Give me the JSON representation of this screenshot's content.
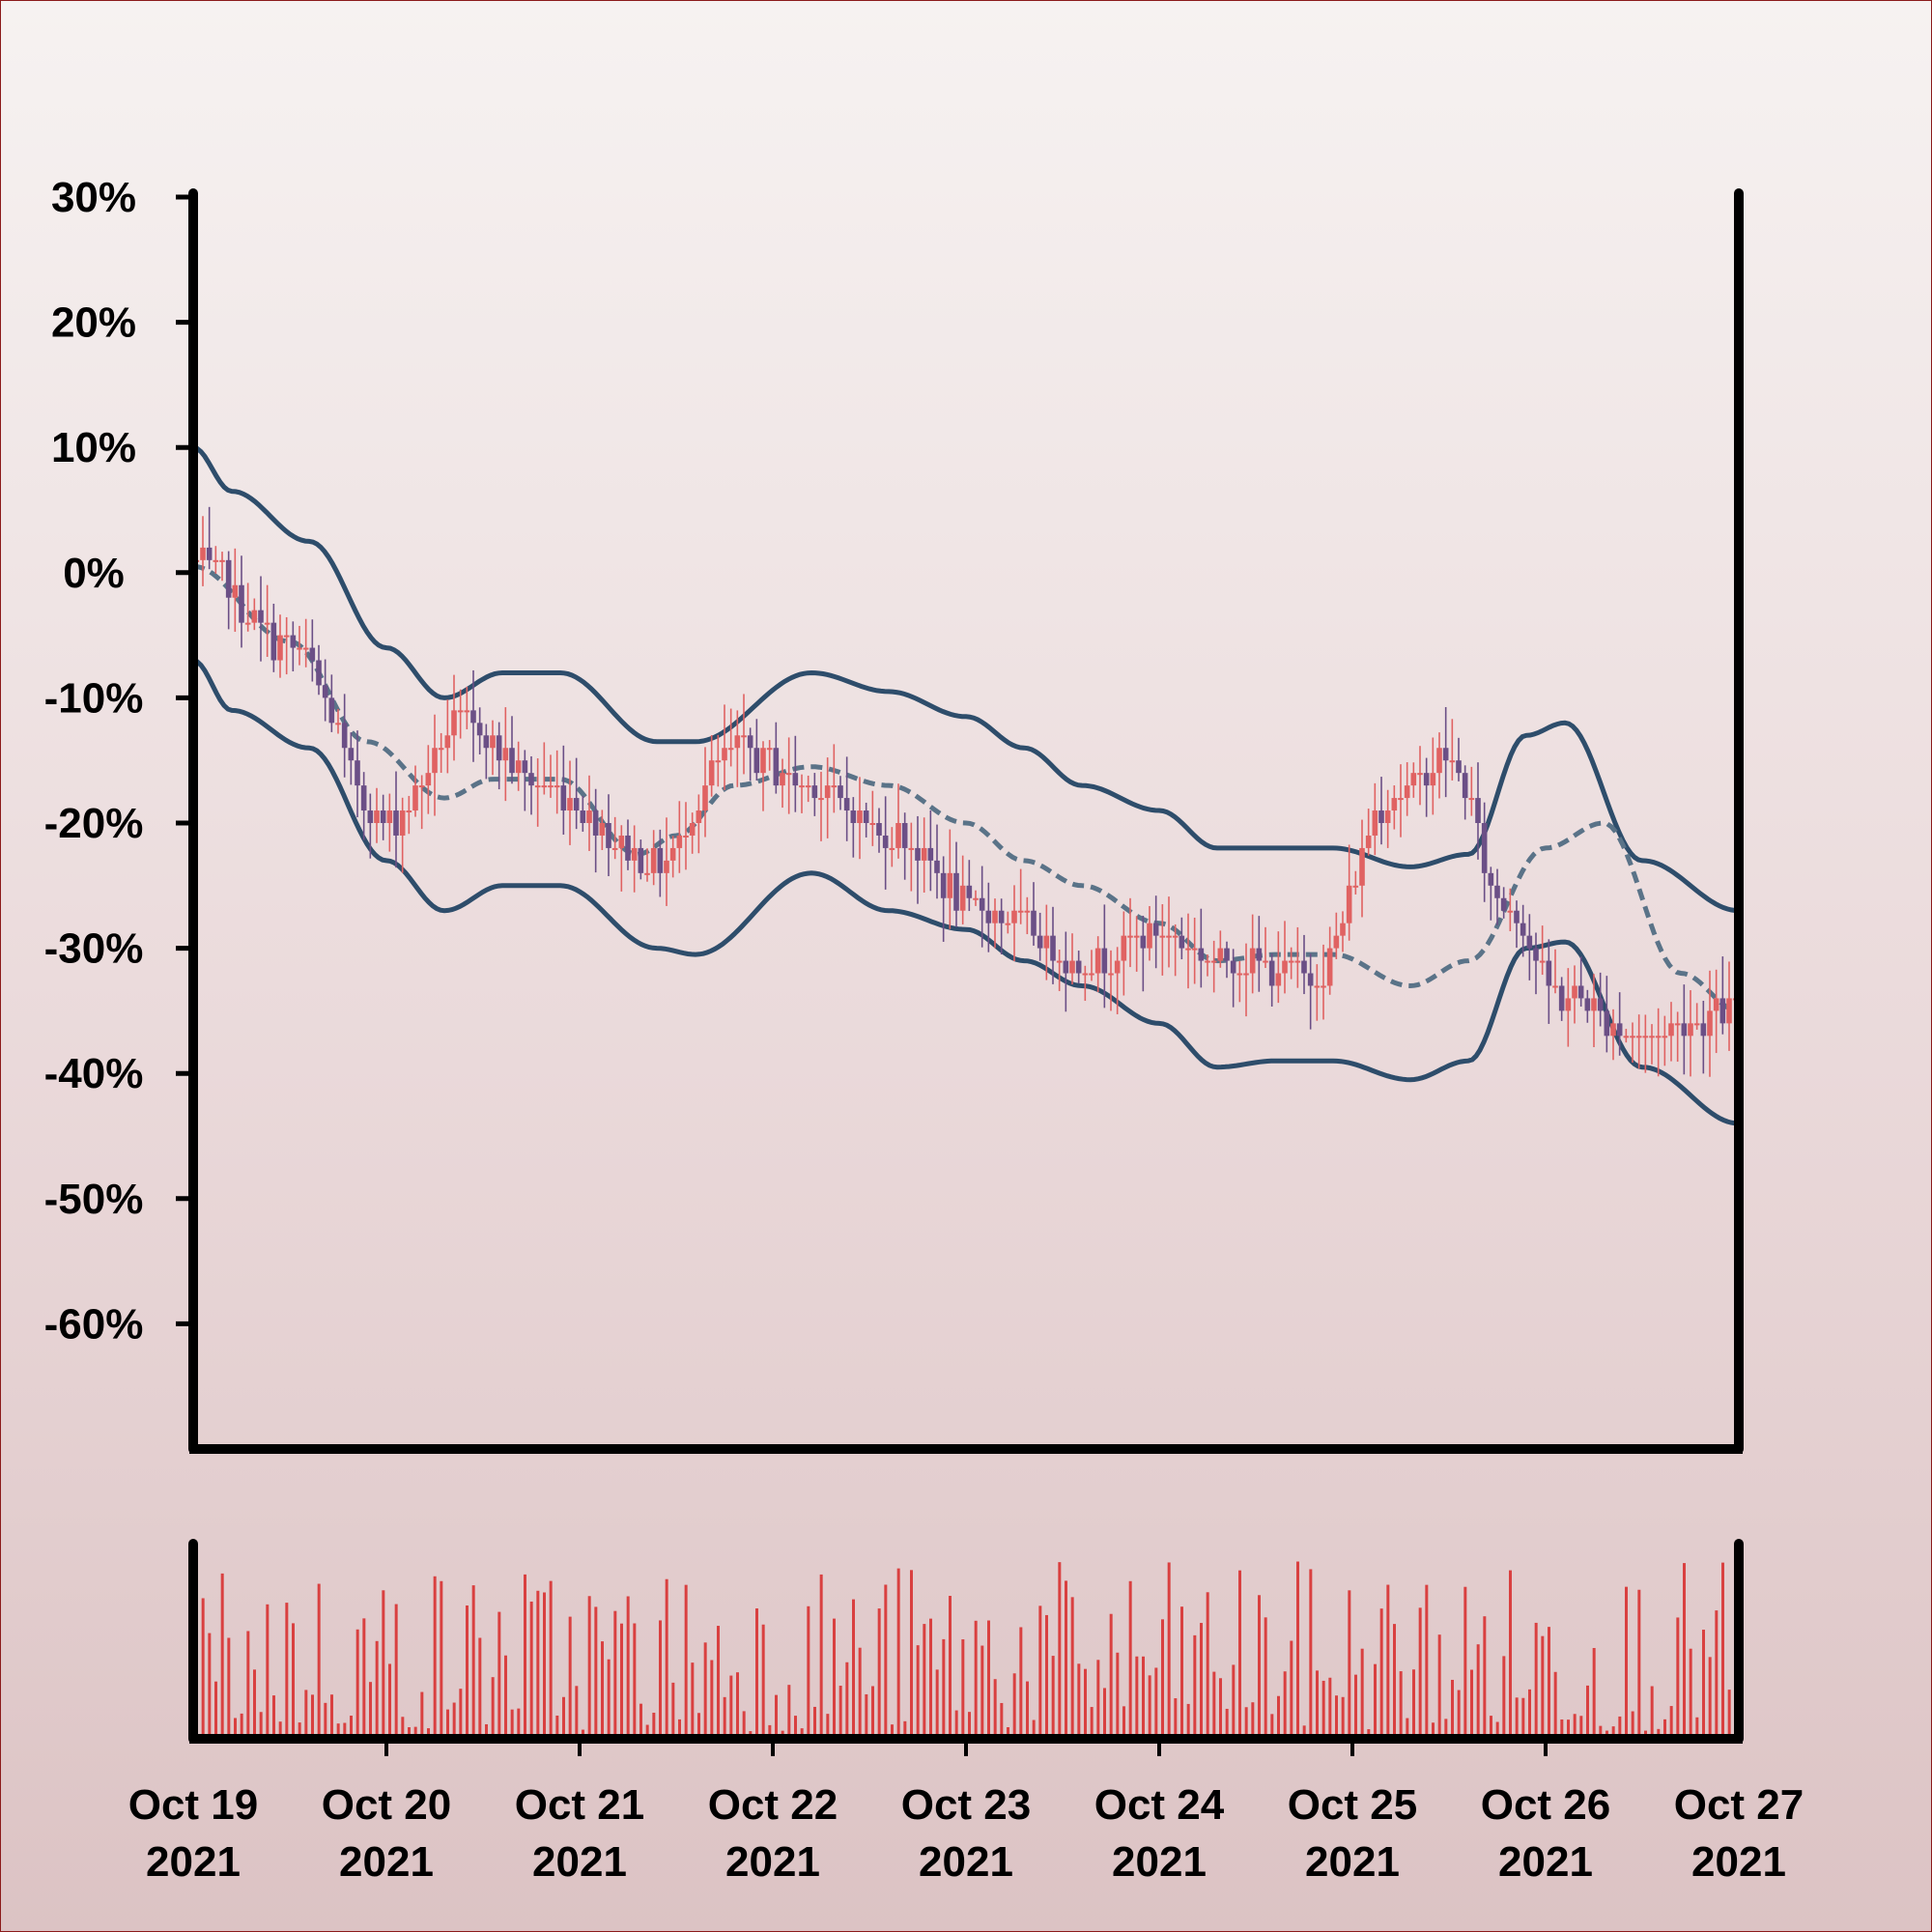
{
  "chart_data": {
    "type": "candlestick",
    "price_panel": {
      "yaxis": {
        "ticks": [
          30,
          20,
          10,
          0,
          -10,
          -20,
          -30,
          -40,
          -50,
          -60
        ],
        "tick_labels": [
          "30%",
          "20%",
          "10%",
          "0%",
          "-10%",
          "-20%",
          "-30%",
          "-40%",
          "-50%",
          "-60%"
        ],
        "range": [
          -70,
          30
        ]
      },
      "xaxis": {
        "range": [
          "2021-10-19",
          "2021-10-27"
        ],
        "ticks": [
          "2021-10-19",
          "2021-10-20",
          "2021-10-21",
          "2021-10-22",
          "2021-10-23",
          "2021-10-24",
          "2021-10-25",
          "2021-10-26",
          "2021-10-27"
        ],
        "tick_labels": [
          [
            "Oct 19",
            "2021"
          ],
          [
            "Oct 20",
            "2021"
          ],
          [
            "Oct 21",
            "2021"
          ],
          [
            "Oct 22",
            "2021"
          ],
          [
            "Oct 23",
            "2021"
          ],
          [
            "Oct 24",
            "2021"
          ],
          [
            "Oct 25",
            "2021"
          ],
          [
            "Oct 26",
            "2021"
          ],
          [
            "Oct 27",
            "2021"
          ]
        ]
      },
      "candles_per_day": 30,
      "close_trend_days": [
        0,
        0.5,
        1,
        1.4,
        1.8,
        2.4,
        2.8,
        3.2,
        3.6,
        4.1,
        4.6,
        5,
        5.4,
        5.8,
        6.2,
        6.5,
        6.8,
        7.1,
        7.5,
        8
      ],
      "close_trend_values": [
        1,
        -6,
        -20,
        -12,
        -17,
        -23,
        -14,
        -17,
        -21,
        -27,
        -31,
        -29,
        -31,
        -32,
        -18,
        -15,
        -27,
        -34,
        -37,
        -35
      ],
      "bollinger": {
        "middle_days": [
          0,
          0.5,
          0.9,
          1.3,
          1.55,
          1.9,
          2.3,
          2.5,
          2.8,
          3.2,
          3.6,
          4,
          4.3,
          4.6,
          5,
          5.3,
          5.6,
          5.9,
          6.3,
          6.6,
          7,
          7.3,
          7.7,
          8
        ],
        "middle_values": [
          0.5,
          -5.5,
          -13.5,
          -18,
          -16.5,
          -16.5,
          -22.5,
          -21,
          -17,
          -15.5,
          -17,
          -20,
          -23,
          -25,
          -28,
          -31,
          -30.5,
          -30.5,
          -33,
          -31,
          -22,
          -20,
          -32,
          -35
        ],
        "upper_days": [
          0,
          0.2,
          0.6,
          1,
          1.3,
          1.6,
          1.9,
          2.4,
          2.6,
          3.2,
          3.6,
          4,
          4.3,
          4.6,
          5,
          5.3,
          5.6,
          5.9,
          6.3,
          6.6,
          6.9,
          7.1,
          7.5,
          8
        ],
        "upper_values": [
          10,
          6.5,
          2.5,
          -6,
          -10,
          -8,
          -8,
          -13.5,
          -13.5,
          -8,
          -9.5,
          -11.5,
          -14,
          -17,
          -19,
          -22,
          -22,
          -22,
          -23.5,
          -22.5,
          -13,
          -12,
          -23,
          -27
        ],
        "lower_days": [
          0,
          0.2,
          0.6,
          1,
          1.3,
          1.6,
          1.9,
          2.4,
          2.6,
          3.2,
          3.6,
          4,
          4.3,
          4.6,
          5,
          5.3,
          5.6,
          5.9,
          6.3,
          6.6,
          6.9,
          7.1,
          7.5,
          8
        ],
        "lower_values": [
          -7,
          -11,
          -14,
          -23,
          -27,
          -25,
          -25,
          -30,
          -30.5,
          -24,
          -27,
          -28.5,
          -31,
          -33,
          -36,
          -39.5,
          -39,
          -39,
          -40.5,
          -39,
          -30,
          -29.5,
          -39.5,
          -44
        ]
      },
      "colors": {
        "up": "#e06262",
        "down": "#6b4f86",
        "band": "#2e4d6b",
        "middle": "#5a7388"
      }
    },
    "volume_panel": {
      "bars_per_day": 30,
      "color": "#d94040"
    }
  }
}
